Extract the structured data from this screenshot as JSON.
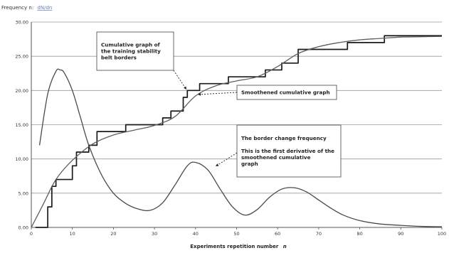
{
  "chart_data": {
    "type": "line",
    "ylabel_prefix": "Frequency n:",
    "ylabel_unit": "dN/dn",
    "xlabel": "Experiments repetition number",
    "xlabel_var": "n",
    "xlim": [
      0,
      100
    ],
    "ylim": [
      0,
      30
    ],
    "x_ticks": [
      "0",
      "10",
      "20",
      "30",
      "40",
      "50",
      "60",
      "70",
      "80",
      "90",
      "100"
    ],
    "y_ticks": [
      "0.00",
      "5.00",
      "10.00",
      "15.00",
      "20.00",
      "25.00",
      "30.00"
    ],
    "grid": true,
    "series": [
      {
        "kind": "step",
        "x": [
          1,
          4,
          5,
          6,
          10,
          11,
          14,
          16,
          23,
          32,
          34,
          37,
          38,
          41,
          48,
          57,
          61,
          65,
          77,
          86,
          100
        ],
        "y": [
          0,
          3,
          6,
          7,
          9,
          11,
          12,
          14,
          15,
          16,
          17,
          19,
          20,
          21,
          22,
          23,
          24,
          26,
          27,
          28,
          28
        ]
      },
      {
        "kind": "smooth",
        "x": [
          0,
          3,
          6,
          10,
          15,
          20,
          25,
          30,
          35,
          40,
          45,
          50,
          55,
          60,
          65,
          70,
          75,
          80,
          85,
          90,
          95,
          100
        ],
        "y": [
          0,
          3.5,
          7,
          9.8,
          12.2,
          13.5,
          14.2,
          14.9,
          16.2,
          19.2,
          20.7,
          21.4,
          22.0,
          23.5,
          25.4,
          26.4,
          27.0,
          27.4,
          27.6,
          27.8,
          27.85,
          27.9
        ]
      },
      {
        "kind": "frequency",
        "x": [
          2,
          4,
          6,
          7,
          8,
          10,
          12,
          14,
          17,
          20,
          23,
          26,
          29,
          32,
          35,
          38,
          40,
          43,
          46,
          49,
          52,
          55,
          58,
          61,
          64,
          67,
          70,
          73,
          76,
          80,
          85,
          90,
          95,
          100
        ],
        "y": [
          12,
          19.5,
          22.8,
          23,
          22.6,
          20,
          16,
          12,
          7.8,
          5,
          3.5,
          2.7,
          2.5,
          3.6,
          6.2,
          9,
          9.5,
          8.4,
          5.6,
          3,
          1.8,
          2.6,
          4.4,
          5.6,
          5.8,
          5.2,
          4,
          2.8,
          1.8,
          1.0,
          0.5,
          0.3,
          0.15,
          0.1
        ]
      }
    ],
    "annotations": [
      {
        "text": [
          "Cumulative graph of",
          "the training stability",
          "belt borders"
        ]
      },
      {
        "text": [
          "Smoothened cumulative graph"
        ]
      },
      {
        "text": [
          "The border change frequency",
          "",
          "This is the first derivative of the",
          "smoothened cumulative",
          "graph"
        ]
      }
    ]
  }
}
